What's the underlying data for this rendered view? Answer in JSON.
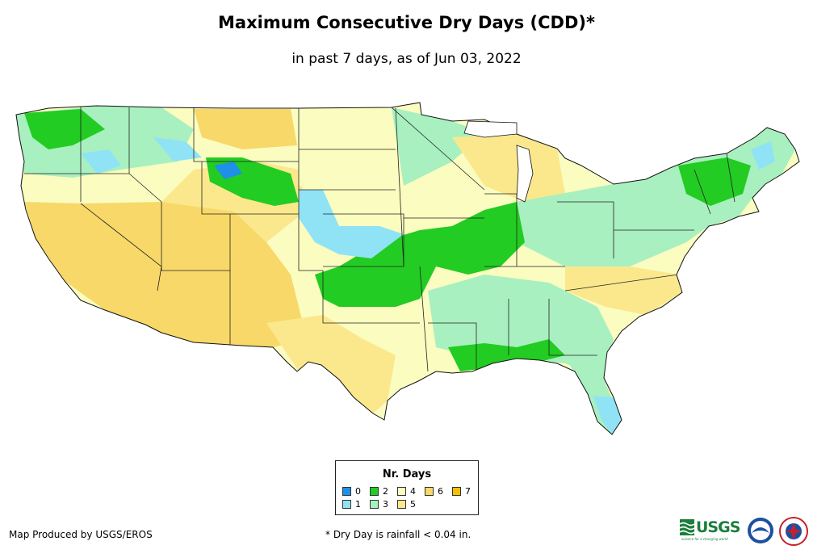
{
  "title": "Maximum Consecutive Dry Days (CDD)*",
  "subtitle": "in past 7 days, as of Jun 03, 2022",
  "legend": {
    "title": "Nr. Days",
    "items": [
      {
        "label": "0",
        "color": "#1e90e8"
      },
      {
        "label": "1",
        "color": "#8fe3f5"
      },
      {
        "label": "2",
        "color": "#22cc22"
      },
      {
        "label": "3",
        "color": "#a8f0c0"
      },
      {
        "label": "4",
        "color": "#fafcc0"
      },
      {
        "label": "5",
        "color": "#fbe88c"
      },
      {
        "label": "6",
        "color": "#f8d868"
      },
      {
        "label": "7",
        "color": "#f5c000"
      }
    ]
  },
  "credit": "Map Produced by USGS/EROS",
  "footnote": "* Dry Day is rainfall < 0.04 in.",
  "logos": {
    "usgs": "USGS",
    "usgs_tagline": "science for a changing world"
  },
  "icons": {
    "usgs": "usgs-logo",
    "noaa": "noaa-logo",
    "nws": "nws-logo"
  }
}
